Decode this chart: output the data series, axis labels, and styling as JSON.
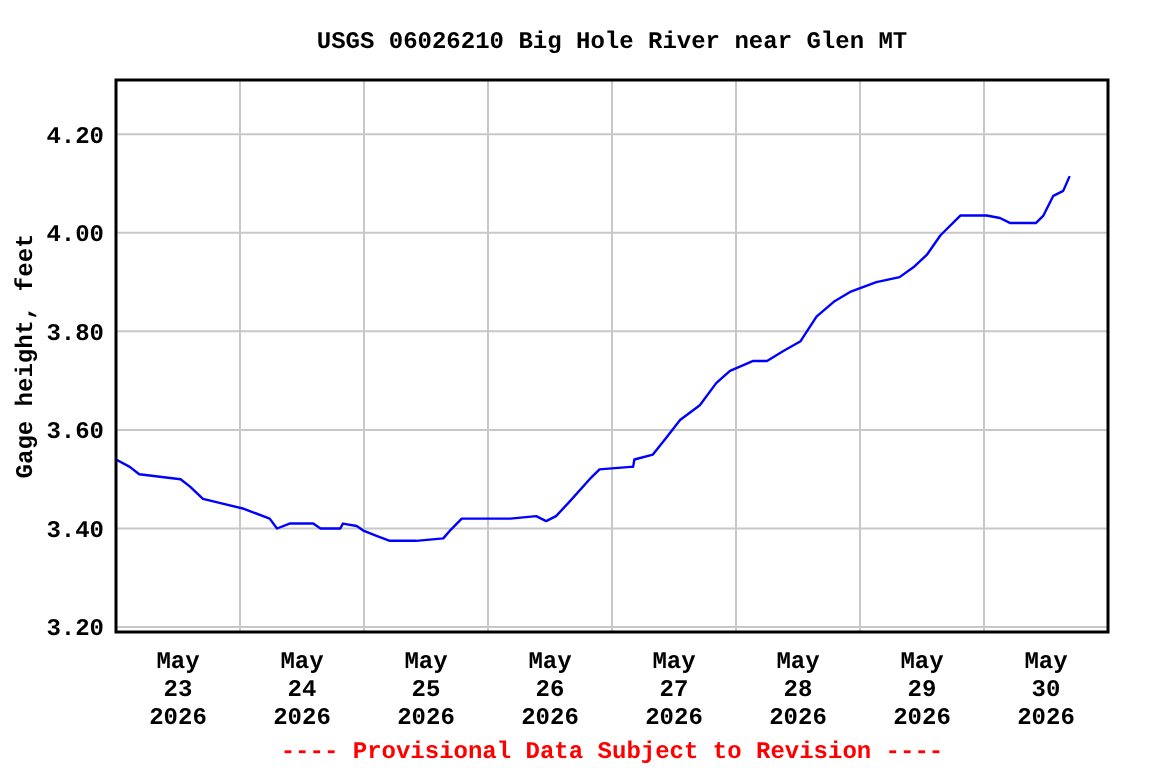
{
  "chart_data": {
    "type": "line",
    "title": "USGS 06026210 Big Hole River near Glen MT",
    "ylabel": "Gage height, feet",
    "annotations": [
      "---- Provisional Data Subject to Revision ----"
    ],
    "x": [
      "2026-05-23T00:00",
      "2026-05-23T02:40",
      "2026-05-23T04:30",
      "2026-05-23T12:30",
      "2026-05-23T14:20",
      "2026-05-23T16:50",
      "2026-05-23T20:50",
      "2026-05-24T00:45",
      "2026-05-24T05:45",
      "2026-05-24T07:10",
      "2026-05-24T09:35",
      "2026-05-24T14:10",
      "2026-05-24T15:35",
      "2026-05-24T19:25",
      "2026-05-24T19:55",
      "2026-05-24T22:35",
      "2026-05-25T00:00",
      "2026-05-25T02:25",
      "2026-05-25T05:00",
      "2026-05-25T10:05",
      "2026-05-25T15:20",
      "2026-05-25T16:35",
      "2026-05-25T18:55",
      "2026-05-25T23:00",
      "2026-05-26T04:20",
      "2026-05-26T09:20",
      "2026-05-26T11:15",
      "2026-05-26T13:10",
      "2026-05-26T15:50",
      "2026-05-26T19:40",
      "2026-05-26T21:35",
      "2026-05-27T03:35",
      "2026-05-27T04:05",
      "2026-05-27T04:20",
      "2026-05-27T07:55",
      "2026-05-27T10:35",
      "2026-05-27T13:10",
      "2026-05-27T17:00",
      "2026-05-27T20:10",
      "2026-05-27T22:50",
      "2026-05-28T03:20",
      "2026-05-28T06:00",
      "2026-05-28T09:10",
      "2026-05-28T12:30",
      "2026-05-28T15:35",
      "2026-05-28T18:55",
      "2026-05-28T22:05",
      "2026-05-29T03:10",
      "2026-05-29T07:40",
      "2026-05-29T10:20",
      "2026-05-29T12:55",
      "2026-05-29T15:35",
      "2026-05-29T19:25",
      "2026-05-30T00:30",
      "2026-05-30T03:05",
      "2026-05-30T05:00",
      "2026-05-30T10:05",
      "2026-05-30T11:30",
      "2026-05-30T13:25",
      "2026-05-30T15:20",
      "2026-05-30T16:35"
    ],
    "series": [
      {
        "color": "#0000ff",
        "values": [
          3.54,
          3.525,
          3.51,
          3.5,
          3.485,
          3.46,
          3.45,
          3.44,
          3.42,
          3.4,
          3.41,
          3.41,
          3.4,
          3.4,
          3.41,
          3.405,
          3.395,
          3.385,
          3.375,
          3.375,
          3.38,
          3.395,
          3.42,
          3.42,
          3.42,
          3.425,
          3.415,
          3.425,
          3.455,
          3.5,
          3.52,
          3.525,
          3.525,
          3.54,
          3.55,
          3.585,
          3.62,
          3.65,
          3.695,
          3.72,
          3.74,
          3.74,
          3.76,
          3.78,
          3.83,
          3.86,
          3.88,
          3.9,
          3.91,
          3.93,
          3.955,
          3.995,
          4.035,
          4.035,
          4.03,
          4.02,
          4.02,
          4.035,
          4.075,
          4.085,
          4.115
        ]
      }
    ],
    "xlim": [
      "2026-05-23T00:00",
      "2026-05-31T00:00"
    ],
    "xticks": [
      {
        "value": "2026-05-23T12:00",
        "label": "May\n23\n2026"
      },
      {
        "value": "2026-05-24T00:00",
        "label": null
      },
      {
        "value": "2026-05-24T12:00",
        "label": "May\n24\n2026"
      },
      {
        "value": "2026-05-25T00:00",
        "label": null
      },
      {
        "value": "2026-05-25T12:00",
        "label": "May\n25\n2026"
      },
      {
        "value": "2026-05-26T00:00",
        "label": null
      },
      {
        "value": "2026-05-26T12:00",
        "label": "May\n26\n2026"
      },
      {
        "value": "2026-05-27T00:00",
        "label": null
      },
      {
        "value": "2026-05-27T12:00",
        "label": "May\n27\n2026"
      },
      {
        "value": "2026-05-28T00:00",
        "label": null
      },
      {
        "value": "2026-05-28T12:00",
        "label": "May\n28\n2026"
      },
      {
        "value": "2026-05-29T00:00",
        "label": null
      },
      {
        "value": "2026-05-29T12:00",
        "label": "May\n29\n2026"
      },
      {
        "value": "2026-05-30T00:00",
        "label": null
      },
      {
        "value": "2026-05-30T12:00",
        "label": "May\n30\n2026"
      }
    ],
    "ylim": [
      3.19,
      4.31
    ],
    "yticks": [
      {
        "value": 3.2,
        "label": "3.20"
      },
      {
        "value": 3.4,
        "label": "3.40"
      },
      {
        "value": 3.6,
        "label": "3.60"
      },
      {
        "value": 3.8,
        "label": "3.80"
      },
      {
        "value": 4.0,
        "label": "4.00"
      },
      {
        "value": 4.2,
        "label": "4.20"
      }
    ],
    "grid": true,
    "marker": "none",
    "line_style": "solid"
  }
}
